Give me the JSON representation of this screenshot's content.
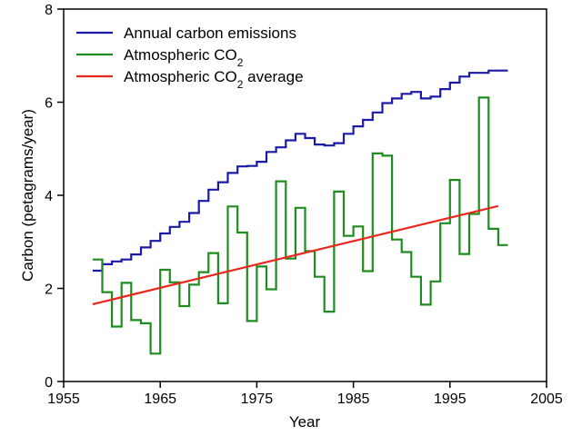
{
  "chart_data": {
    "type": "line",
    "xlabel": "Year",
    "ylabel": "Carbon (petagrams/year)",
    "xlim": [
      1955,
      2005
    ],
    "ylim": [
      0,
      8
    ],
    "xticks": [
      1955,
      1965,
      1975,
      1985,
      1995,
      2005
    ],
    "yticks": [
      0,
      2,
      4,
      6,
      8
    ],
    "xtick_labels": [
      "1955",
      "1965",
      "1975",
      "1985",
      "1995",
      "2005"
    ],
    "ytick_labels": [
      "0",
      "2",
      "4",
      "6",
      "8"
    ],
    "legend_position": "top-left",
    "grid": false,
    "series": [
      {
        "name": "Annual carbon emissions",
        "legend_text": "Annual carbon emissions",
        "legend_sub": "",
        "legend_suffix": "",
        "style": "step",
        "color": "#1a1aa6",
        "x": [
          1958,
          1959,
          1960,
          1961,
          1962,
          1963,
          1964,
          1965,
          1966,
          1967,
          1968,
          1969,
          1970,
          1971,
          1972,
          1973,
          1974,
          1975,
          1976,
          1977,
          1978,
          1979,
          1980,
          1981,
          1982,
          1983,
          1984,
          1985,
          1986,
          1987,
          1988,
          1989,
          1990,
          1991,
          1992,
          1993,
          1994,
          1995,
          1996,
          1997,
          1998,
          1999,
          2000
        ],
        "values": [
          2.38,
          2.52,
          2.58,
          2.62,
          2.73,
          2.88,
          3.02,
          3.18,
          3.32,
          3.43,
          3.62,
          3.88,
          4.12,
          4.28,
          4.48,
          4.62,
          4.63,
          4.72,
          4.93,
          5.03,
          5.18,
          5.32,
          5.23,
          5.09,
          5.07,
          5.12,
          5.32,
          5.48,
          5.62,
          5.78,
          5.98,
          6.08,
          6.18,
          6.22,
          6.08,
          6.12,
          6.28,
          6.42,
          6.55,
          6.63,
          6.63,
          6.68,
          6.68
        ]
      },
      {
        "name": "Atmospheric CO2",
        "legend_text": "Atmospheric CO",
        "legend_sub": "2",
        "legend_suffix": "",
        "style": "step",
        "color": "#1f8c1f",
        "x": [
          1958,
          1959,
          1960,
          1961,
          1962,
          1963,
          1964,
          1965,
          1966,
          1967,
          1968,
          1969,
          1970,
          1971,
          1972,
          1973,
          1974,
          1975,
          1976,
          1977,
          1978,
          1979,
          1980,
          1981,
          1982,
          1983,
          1984,
          1985,
          1986,
          1987,
          1988,
          1989,
          1990,
          1991,
          1992,
          1993,
          1994,
          1995,
          1996,
          1997,
          1998,
          1999,
          2000
        ],
        "values": [
          2.62,
          1.92,
          1.18,
          2.12,
          1.32,
          1.25,
          0.6,
          2.4,
          2.13,
          1.62,
          2.08,
          2.35,
          2.76,
          1.68,
          3.76,
          3.2,
          1.3,
          2.47,
          1.98,
          4.3,
          2.64,
          3.73,
          2.8,
          2.25,
          1.5,
          4.08,
          3.13,
          3.33,
          2.37,
          4.9,
          4.85,
          3.05,
          2.78,
          2.25,
          1.65,
          2.15,
          3.4,
          4.33,
          2.74,
          3.6,
          6.1,
          3.28,
          2.93
        ]
      },
      {
        "name": "Atmospheric CO2 average",
        "legend_text": "Atmospheric CO",
        "legend_sub": "2",
        "legend_suffix": " average",
        "style": "line",
        "color": "#e8281e",
        "x": [
          1958,
          2000
        ],
        "values": [
          1.66,
          3.77
        ]
      }
    ]
  }
}
